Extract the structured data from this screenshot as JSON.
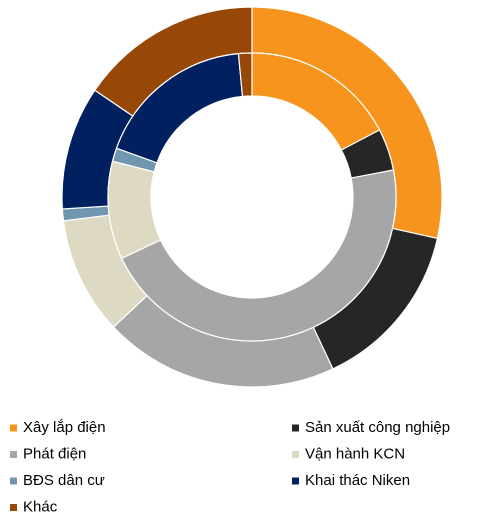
{
  "chart_data": {
    "type": "donut",
    "categories": [
      "Xây lắp điện",
      "Sản xuất công nghiệp",
      "Phát điện",
      "Vận hành KCN",
      "BĐS dân cư",
      "Khai thác Niken",
      "Khác"
    ],
    "colors": [
      "#f7941d",
      "#262626",
      "#a6a6a6",
      "#ddd9c3",
      "#6f97b0",
      "#002060",
      "#974706"
    ],
    "series": [
      {
        "values": [
          28.5,
          14.5,
          20,
          10,
          1,
          10.5,
          15.5
        ]
      },
      {
        "values": [
          17.3,
          4.7,
          46,
          11,
          1.5,
          18,
          1.5
        ]
      }
    ]
  }
}
